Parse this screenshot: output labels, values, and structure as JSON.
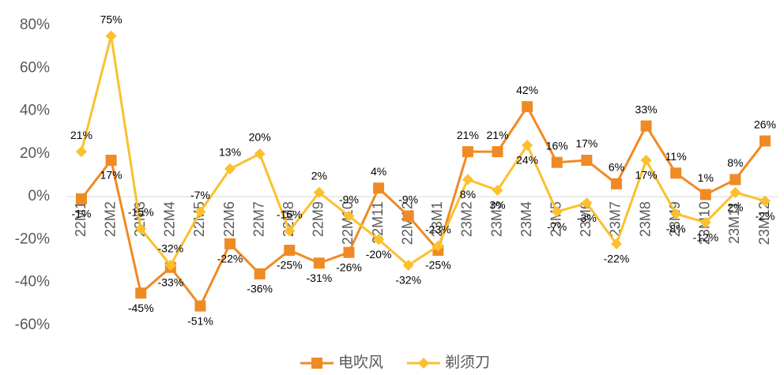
{
  "chart_data": {
    "type": "line",
    "categories": [
      "22M1",
      "22M2",
      "22M3",
      "22M4",
      "22M5",
      "22M6",
      "22M7",
      "22M8",
      "22M9",
      "22M10",
      "22M11",
      "22M12",
      "23M1",
      "23M2",
      "23M3",
      "23M4",
      "23M5",
      "23M6",
      "23M7",
      "23M8",
      "23M9",
      "23M10",
      "23M11",
      "23M12"
    ],
    "series": [
      {
        "name": "电吹风",
        "color": "#f08a24",
        "marker": "square",
        "values": [
          -1,
          17,
          -45,
          -33,
          -51,
          -22,
          -36,
          -25,
          -31,
          -26,
          4,
          -9,
          -25,
          21,
          21,
          42,
          16,
          17,
          6,
          33,
          11,
          1,
          8,
          26
        ],
        "value_labels": [
          "-1%",
          "17%",
          "-45%",
          "-33%",
          "-51%",
          "-22%",
          "-36%",
          "-25%",
          "-31%",
          "-26%",
          "4%",
          "-9%",
          "-25%",
          "21%",
          "21%",
          "42%",
          "16%",
          "17%",
          "6%",
          "33%",
          "11%",
          "1%",
          "8%",
          "26%"
        ]
      },
      {
        "name": "剃须刀",
        "color": "#fbc02d",
        "marker": "diamond",
        "values": [
          21,
          75,
          -15,
          -32,
          -7,
          13,
          20,
          -16,
          2,
          -9,
          -20,
          -32,
          -23,
          8,
          3,
          24,
          -7,
          -3,
          -22,
          17,
          -8,
          -12,
          2,
          -2
        ],
        "value_labels": [
          "21%",
          "75%",
          "-15%",
          "-32%",
          "-7%",
          "13%",
          "20%",
          "-16%",
          "2%",
          "-9%",
          "-20%",
          "-32%",
          "-23%",
          "8%",
          "3%",
          "24%",
          "-7%",
          "-3%",
          "-22%",
          "17%",
          "-8%",
          "-12%",
          "2%",
          "-2%"
        ]
      }
    ],
    "ylim": [
      -60,
      80
    ],
    "yticks": [
      {
        "value": -60,
        "label": "-60%"
      },
      {
        "value": -40,
        "label": "-40%"
      },
      {
        "value": -20,
        "label": "-20%"
      },
      {
        "value": 0,
        "label": "0%"
      },
      {
        "value": 20,
        "label": "20%"
      },
      {
        "value": 40,
        "label": "40%"
      },
      {
        "value": 60,
        "label": "60%"
      },
      {
        "value": 80,
        "label": "80%"
      }
    ],
    "legend": "bottom"
  }
}
